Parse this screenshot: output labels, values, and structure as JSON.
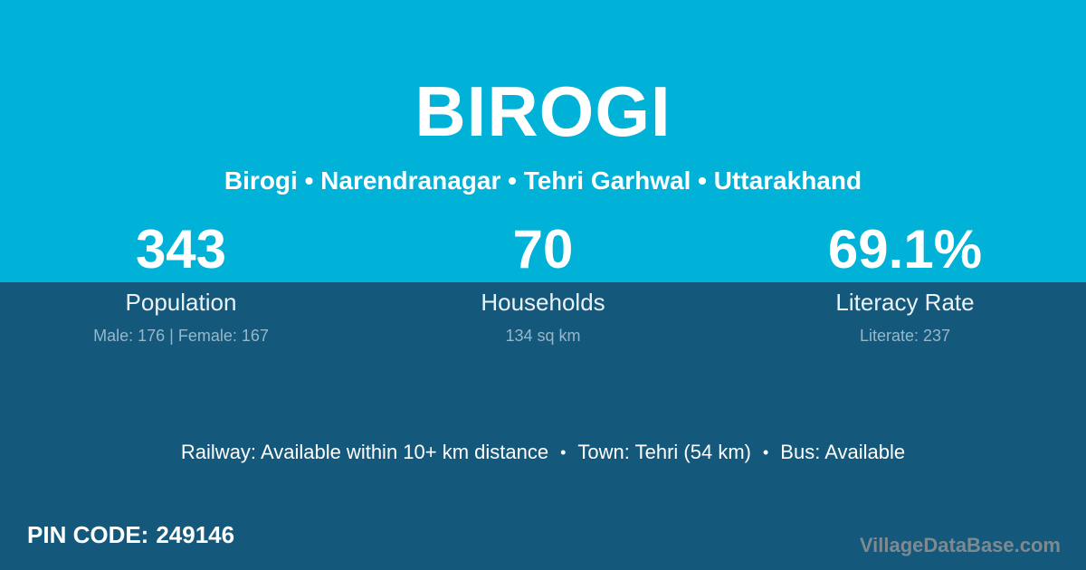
{
  "colors": {
    "top_band": "#00b1d8",
    "bottom_band": "#14587b",
    "primary_text": "#ffffff",
    "muted_text": "#97b7cb",
    "watermark_text": "#7d8a91"
  },
  "header": {
    "title": "BIROGI",
    "breadcrumb": "Birogi • Narendranagar • Tehri Garhwal • Uttarakhand"
  },
  "stats": [
    {
      "value": "343",
      "label": "Population",
      "detail": "Male: 176 | Female: 167"
    },
    {
      "value": "70",
      "label": "Households",
      "detail": "134 sq km"
    },
    {
      "value": "69.1%",
      "label": "Literacy Rate",
      "detail": "Literate: 237"
    }
  ],
  "amenities": {
    "bullet": "•",
    "items": [
      "Railway: Available within 10+ km distance",
      "Town: Tehri (54 km)",
      "Bus: Available"
    ]
  },
  "pin": {
    "label": "PIN CODE:",
    "value": "249146"
  },
  "watermark": "VillageDataBase.com"
}
